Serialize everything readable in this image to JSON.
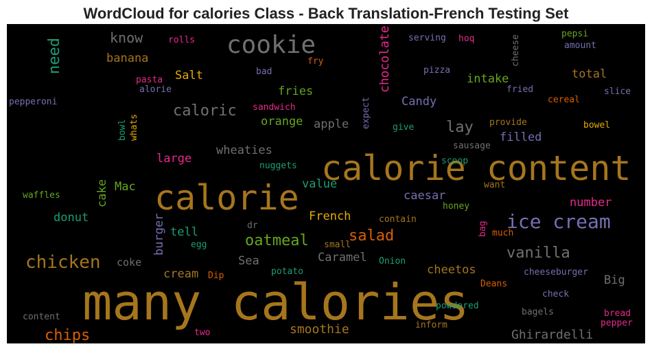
{
  "title": "WordCloud for calories Class - Back Translation-French Testing Set",
  "words": [
    {
      "text": "many calories",
      "color": "#a6761d"
    },
    {
      "text": "calorie content",
      "color": "#a6761d"
    },
    {
      "text": "calorie",
      "color": "#a6761d"
    },
    {
      "text": "cookie",
      "color": "#707070"
    },
    {
      "text": "ice cream",
      "color": "#7570b3"
    },
    {
      "text": "chicken",
      "color": "#a6761d"
    },
    {
      "text": "vanilla",
      "color": "#707070"
    },
    {
      "text": "caloric",
      "color": "#707070"
    },
    {
      "text": "lay",
      "color": "#707070"
    },
    {
      "text": "salad",
      "color": "#d95f02"
    },
    {
      "text": "oatmeal",
      "color": "#66a61e"
    },
    {
      "text": "chips",
      "color": "#d95f02"
    },
    {
      "text": "know",
      "color": "#707070"
    },
    {
      "text": "need",
      "color": "#1b9e77"
    },
    {
      "text": "chocolate",
      "color": "#e7298a"
    },
    {
      "text": "smoothie",
      "color": "#a6761d"
    },
    {
      "text": "Ghirardelli",
      "color": "#707070"
    },
    {
      "text": "banana",
      "color": "#a6761d"
    },
    {
      "text": "Salt",
      "color": "#e6ab02"
    },
    {
      "text": "fries",
      "color": "#66a61e"
    },
    {
      "text": "intake",
      "color": "#66a61e"
    },
    {
      "text": "total",
      "color": "#a6761d"
    },
    {
      "text": "Candy",
      "color": "#7570b3"
    },
    {
      "text": "orange",
      "color": "#66a61e"
    },
    {
      "text": "apple",
      "color": "#707070"
    },
    {
      "text": "filled",
      "color": "#7570b3"
    },
    {
      "text": "wheaties",
      "color": "#707070"
    },
    {
      "text": "large",
      "color": "#e7298a"
    },
    {
      "text": "Mac",
      "color": "#66a61e"
    },
    {
      "text": "cake",
      "color": "#66a61e"
    },
    {
      "text": "value",
      "color": "#1b9e77"
    },
    {
      "text": "caesar",
      "color": "#7570b3"
    },
    {
      "text": "number",
      "color": "#e7298a"
    },
    {
      "text": "French",
      "color": "#e6ab02"
    },
    {
      "text": "donut",
      "color": "#1b9e77"
    },
    {
      "text": "tell",
      "color": "#1b9e77"
    },
    {
      "text": "burger",
      "color": "#7570b3"
    },
    {
      "text": "coke",
      "color": "#707070"
    },
    {
      "text": "Sea",
      "color": "#707070"
    },
    {
      "text": "Caramel",
      "color": "#707070"
    },
    {
      "text": "cheetos",
      "color": "#a6761d"
    },
    {
      "text": "Big",
      "color": "#707070"
    },
    {
      "text": "cream",
      "color": "#a6761d"
    },
    {
      "text": "rolls",
      "color": "#e7298a"
    },
    {
      "text": "serving",
      "color": "#7570b3"
    },
    {
      "text": "hoq",
      "color": "#e7298a"
    },
    {
      "text": "cheese",
      "color": "#707070"
    },
    {
      "text": "pepsi",
      "color": "#66a61e"
    },
    {
      "text": "amount",
      "color": "#7570b3"
    },
    {
      "text": "fry",
      "color": "#d95f02"
    },
    {
      "text": "bad",
      "color": "#7570b3"
    },
    {
      "text": "pizza",
      "color": "#7570b3"
    },
    {
      "text": "pasta",
      "color": "#e7298a"
    },
    {
      "text": "alorie",
      "color": "#7570b3"
    },
    {
      "text": "fried",
      "color": "#7570b3"
    },
    {
      "text": "slice",
      "color": "#7570b3"
    },
    {
      "text": "pepperoni",
      "color": "#7570b3"
    },
    {
      "text": "cereal",
      "color": "#d95f02"
    },
    {
      "text": "sandwich",
      "color": "#e7298a"
    },
    {
      "text": "expect",
      "color": "#7570b3"
    },
    {
      "text": "whats",
      "color": "#e6ab02"
    },
    {
      "text": "bowl",
      "color": "#1b9e77"
    },
    {
      "text": "provide",
      "color": "#a6761d"
    },
    {
      "text": "bowel",
      "color": "#e6ab02"
    },
    {
      "text": "give",
      "color": "#1b9e77"
    },
    {
      "text": "sausage",
      "color": "#707070"
    },
    {
      "text": "nuggets",
      "color": "#1b9e77"
    },
    {
      "text": "scoop",
      "color": "#1b9e77"
    },
    {
      "text": "want",
      "color": "#a6761d"
    },
    {
      "text": "waffles",
      "color": "#66a61e"
    },
    {
      "text": "honey",
      "color": "#66a61e"
    },
    {
      "text": "contain",
      "color": "#a6761d"
    },
    {
      "text": "dr",
      "color": "#707070"
    },
    {
      "text": "bag",
      "color": "#e7298a"
    },
    {
      "text": "much",
      "color": "#d95f02"
    },
    {
      "text": "egg",
      "color": "#1b9e77"
    },
    {
      "text": "small",
      "color": "#a6761d"
    },
    {
      "text": "Onion",
      "color": "#1b9e77"
    },
    {
      "text": "potato",
      "color": "#1b9e77"
    },
    {
      "text": "Dip",
      "color": "#d95f02"
    },
    {
      "text": "cheeseburger",
      "color": "#7570b3"
    },
    {
      "text": "Deans",
      "color": "#d95f02"
    },
    {
      "text": "check",
      "color": "#7570b3"
    },
    {
      "text": "powdered",
      "color": "#1b9e77"
    },
    {
      "text": "bread",
      "color": "#e7298a"
    },
    {
      "text": "content",
      "color": "#707070"
    },
    {
      "text": "bagels",
      "color": "#707070"
    },
    {
      "text": "pepper",
      "color": "#e7298a"
    },
    {
      "text": "inform",
      "color": "#a6761d"
    },
    {
      "text": "two",
      "color": "#e7298a"
    }
  ]
}
